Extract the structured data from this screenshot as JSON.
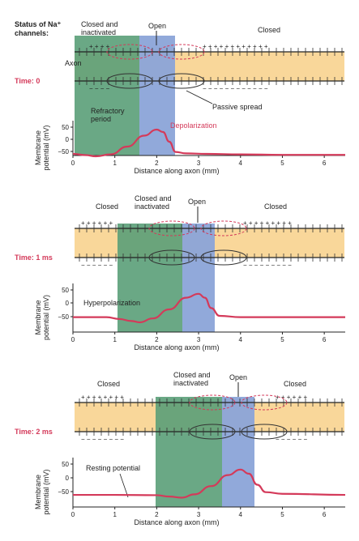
{
  "header": {
    "status_line1": "Status of Na⁺",
    "status_line2": "channels:"
  },
  "panels": [
    {
      "time": "Time: 0",
      "status_labels": {
        "left_line1": "Closed and",
        "left_line2": "inactivated",
        "center": "Open",
        "right": "Closed"
      },
      "annotations": {
        "axon": "Axon",
        "passive_spread": "Passive spread",
        "refractory_line1": "Refractory",
        "refractory_line2": "period",
        "depolarization": "Depolarization"
      },
      "green_range_mm": [
        0.1,
        1.6
      ],
      "blue_range_mm": [
        1.6,
        2.4
      ],
      "open_at_mm": 2.0
    },
    {
      "time": "Time: 1 ms",
      "status_labels": {
        "far_left": "Closed",
        "left_line1": "Closed and",
        "left_line2": "inactivated",
        "center": "Open",
        "right": "Closed"
      },
      "annotations": {
        "hyperpolarization": "Hyperpolarization"
      },
      "green_range_mm": [
        1.1,
        2.7
      ],
      "blue_range_mm": [
        2.7,
        3.5
      ],
      "open_at_mm": 3.0
    },
    {
      "time": "Time: 2 ms",
      "status_labels": {
        "far_left": "Closed",
        "left_line1": "Closed and",
        "left_line2": "inactivated",
        "center": "Open",
        "right": "Closed"
      },
      "annotations": {
        "resting": "Resting potential"
      },
      "green_range_mm": [
        2.0,
        3.6
      ],
      "blue_range_mm": [
        3.6,
        4.4
      ],
      "open_at_mm": 4.0
    }
  ],
  "axes": {
    "ylabel_line1": "Membrane",
    "ylabel_line2": "potential (mV)",
    "xlabel": "Distance along axon (mm)",
    "x_ticks": [
      "0",
      "1",
      "2",
      "3",
      "4",
      "5",
      "6"
    ],
    "y_ticks": [
      "50",
      "0",
      "−50"
    ]
  },
  "chart_data": [
    {
      "type": "line",
      "xlabel": "Distance along axon (mm)",
      "ylabel": "Membrane potential (mV)",
      "xlim": [
        0,
        6.5
      ],
      "ylim": [
        -75,
        60
      ],
      "x": [
        0,
        0.3,
        0.55,
        0.9,
        1.3,
        1.7,
        2.0,
        2.15,
        2.3,
        2.45,
        2.7,
        3.2,
        4.0,
        5.0,
        6.5
      ],
      "y": [
        -60,
        -65,
        -70,
        -62,
        -30,
        15,
        40,
        30,
        -10,
        -52,
        -58,
        -60,
        -62,
        -64,
        -64
      ]
    },
    {
      "type": "line",
      "xlabel": "Distance along axon (mm)",
      "ylabel": "Membrane potential (mV)",
      "xlim": [
        0,
        6.5
      ],
      "ylim": [
        -75,
        60
      ],
      "x": [
        0,
        0.8,
        1.1,
        1.4,
        1.6,
        1.9,
        2.3,
        2.7,
        3.0,
        3.15,
        3.3,
        3.5,
        4.0,
        5.0,
        6.5
      ],
      "y": [
        -55,
        -55,
        -62,
        -70,
        -75,
        -60,
        -25,
        20,
        35,
        20,
        -20,
        -50,
        -55,
        -55,
        -55
      ]
    },
    {
      "type": "line",
      "xlabel": "Distance along axon (mm)",
      "ylabel": "Membrane potential (mV)",
      "xlim": [
        0,
        6.5
      ],
      "ylim": [
        -75,
        60
      ],
      "x": [
        0,
        1.0,
        2.0,
        2.3,
        2.6,
        2.9,
        3.3,
        3.7,
        4.0,
        4.2,
        4.4,
        4.6,
        5.0,
        6.5
      ],
      "y": [
        -62,
        -62,
        -63,
        -68,
        -72,
        -60,
        -30,
        10,
        30,
        15,
        -25,
        -52,
        -58,
        -62
      ]
    }
  ]
}
